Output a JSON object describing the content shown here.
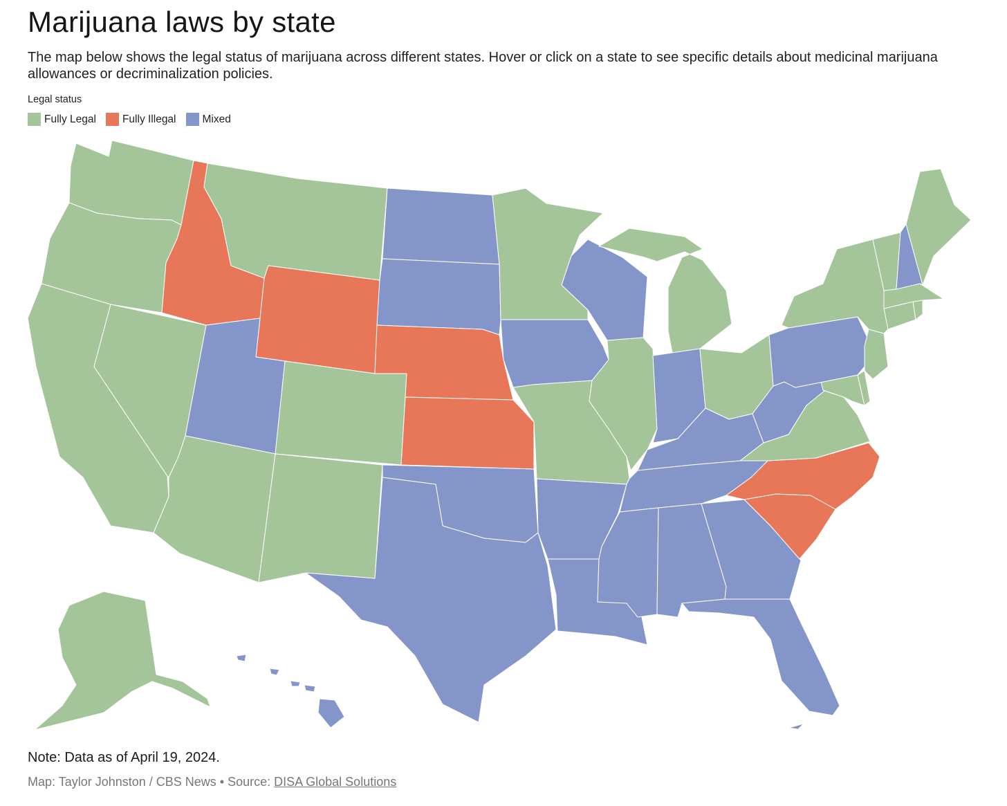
{
  "title": "Marijuana laws by state",
  "description": "The map below shows the legal status of marijuana across different states. Hover or click on a state to see specific details about medicinal marijuana allowances or decriminalization policies.",
  "legend": {
    "title": "Legal status",
    "items": [
      {
        "label": "Fully Legal",
        "color": "#a3c599"
      },
      {
        "label": "Fully Illegal",
        "color": "#e8775a"
      },
      {
        "label": "Mixed",
        "color": "#8495c9"
      }
    ]
  },
  "status_colors": {
    "legal": "#a3c599",
    "illegal": "#e8775a",
    "mixed": "#8495c9"
  },
  "states": {
    "WA": "legal",
    "OR": "legal",
    "CA": "legal",
    "NV": "legal",
    "ID": "illegal",
    "MT": "legal",
    "WY": "illegal",
    "UT": "mixed",
    "CO": "legal",
    "AZ": "legal",
    "NM": "legal",
    "ND": "mixed",
    "SD": "mixed",
    "NE": "illegal",
    "KS": "illegal",
    "OK": "mixed",
    "TX": "mixed",
    "MN": "legal",
    "IA": "mixed",
    "MO": "legal",
    "AR": "mixed",
    "LA": "mixed",
    "WI": "mixed",
    "IL": "legal",
    "MI": "legal",
    "IN": "mixed",
    "OH": "legal",
    "KY": "mixed",
    "TN": "mixed",
    "MS": "mixed",
    "AL": "mixed",
    "GA": "mixed",
    "FL": "mixed",
    "SC": "illegal",
    "NC": "illegal",
    "VA": "legal",
    "WV": "mixed",
    "PA": "mixed",
    "NY": "legal",
    "VT": "legal",
    "NH": "mixed",
    "ME": "legal",
    "MA": "legal",
    "CT": "legal",
    "RI": "legal",
    "NJ": "legal",
    "DE": "legal",
    "MD": "legal",
    "AK": "legal",
    "HI": "mixed"
  },
  "note": "Note: Data as of April 19, 2024.",
  "credit": {
    "prefix": "Map: Taylor Johnston / CBS News • Source: ",
    "link": "DISA Global Solutions"
  }
}
